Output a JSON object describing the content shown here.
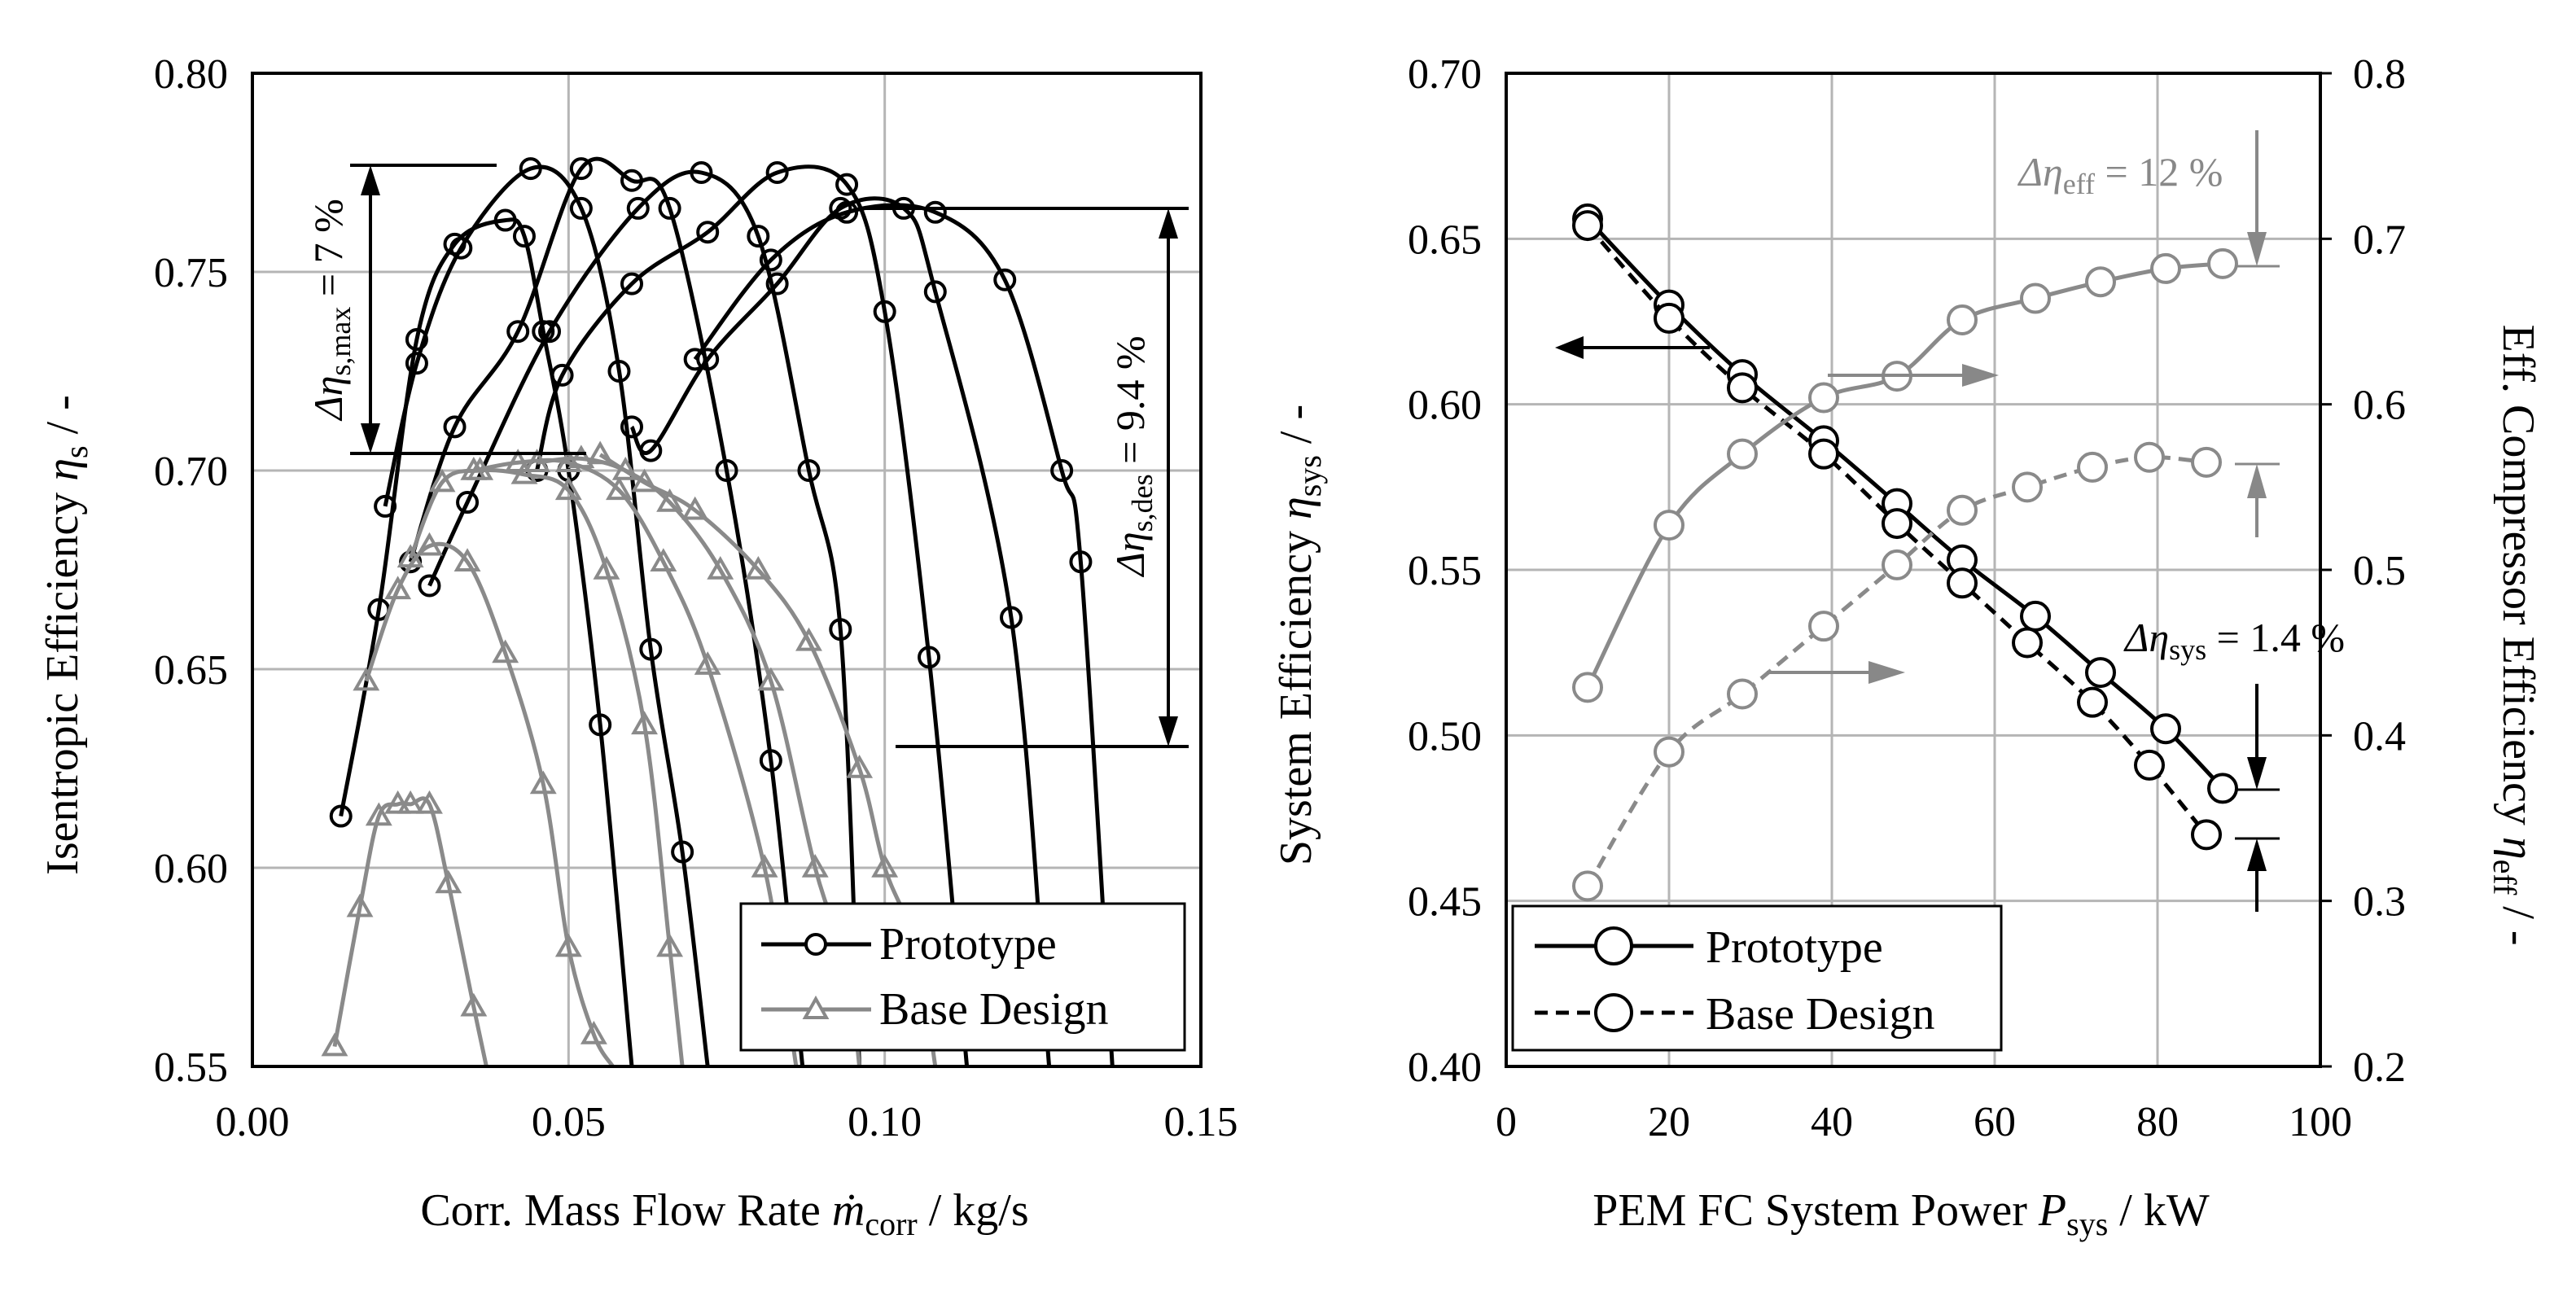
{
  "chart_data": [
    {
      "type": "line",
      "title": "",
      "xlabel": "Corr. Mass Flow Rate ṁcorr / kg/s",
      "ylabel": "Isentropic Efficiency ηs / -",
      "xlim": [
        0.0,
        0.15
      ],
      "ylim": [
        0.55,
        0.8
      ],
      "xticks": [
        "0.00",
        "0.05",
        "0.10",
        "0.15"
      ],
      "yticks": [
        "0.55",
        "0.60",
        "0.65",
        "0.70",
        "0.75",
        "0.80"
      ],
      "grid": true,
      "legend": {
        "placement": "bottom-right",
        "entries": [
          "Prototype",
          "Base Design"
        ]
      },
      "annotations": {
        "delta_max": "Δηs,max = 7 %",
        "delta_des": "Δηs,des = 9.4 %"
      },
      "series": [
        {
          "name": "Prototype",
          "group": "speed-1",
          "x": [
            0.014,
            0.02,
            0.026,
            0.032,
            0.04,
            0.043,
            0.046,
            0.05,
            0.055,
            0.06
          ],
          "y": [
            0.613,
            0.665,
            0.733,
            0.757,
            0.763,
            0.759,
            0.735,
            0.7,
            0.636,
            0.55
          ]
        },
        {
          "name": "Prototype",
          "group": "speed-2",
          "x": [
            0.021,
            0.026,
            0.033,
            0.044,
            0.052,
            0.058,
            0.063,
            0.068,
            0.072
          ],
          "y": [
            0.691,
            0.727,
            0.756,
            0.776,
            0.766,
            0.725,
            0.655,
            0.604,
            0.55
          ]
        },
        {
          "name": "Prototype",
          "group": "speed-3",
          "x": [
            0.025,
            0.032,
            0.042,
            0.052,
            0.06,
            0.066,
            0.075,
            0.082,
            0.087
          ],
          "y": [
            0.677,
            0.711,
            0.735,
            0.776,
            0.773,
            0.766,
            0.7,
            0.627,
            0.55
          ]
        },
        {
          "name": "Prototype",
          "group": "speed-4",
          "x": [
            0.028,
            0.034,
            0.047,
            0.061,
            0.071,
            0.08,
            0.088,
            0.093,
            0.096
          ],
          "y": [
            0.671,
            0.692,
            0.735,
            0.766,
            0.775,
            0.759,
            0.7,
            0.66,
            0.55
          ]
        },
        {
          "name": "Prototype",
          "group": "speed-5",
          "x": [
            0.045,
            0.049,
            0.06,
            0.072,
            0.083,
            0.094,
            0.1,
            0.107,
            0.113
          ],
          "y": [
            0.7,
            0.724,
            0.747,
            0.76,
            0.775,
            0.772,
            0.74,
            0.653,
            0.55
          ]
        },
        {
          "name": "Prototype",
          "group": "speed-6",
          "x": [
            0.06,
            0.063,
            0.072,
            0.083,
            0.093,
            0.103,
            0.108,
            0.12,
            0.126
          ],
          "y": [
            0.711,
            0.705,
            0.728,
            0.747,
            0.766,
            0.766,
            0.745,
            0.663,
            0.55
          ]
        },
        {
          "name": "Prototype",
          "group": "speed-7",
          "x": [
            0.07,
            0.082,
            0.094,
            0.108,
            0.119,
            0.128,
            0.131,
            0.136
          ],
          "y": [
            0.728,
            0.753,
            0.765,
            0.765,
            0.748,
            0.7,
            0.677,
            0.55
          ]
        },
        {
          "name": "Base Design",
          "group": "speed-1",
          "x": [
            0.013,
            0.017,
            0.02,
            0.023,
            0.025,
            0.028,
            0.031,
            0.035,
            0.037
          ],
          "y": [
            0.555,
            0.59,
            0.613,
            0.616,
            0.616,
            0.616,
            0.596,
            0.565,
            0.55
          ]
        },
        {
          "name": "Base Design",
          "group": "speed-2",
          "x": [
            0.018,
            0.023,
            0.028,
            0.034,
            0.04,
            0.046,
            0.05,
            0.054,
            0.057
          ],
          "y": [
            0.647,
            0.67,
            0.681,
            0.677,
            0.654,
            0.621,
            0.58,
            0.558,
            0.55
          ]
        },
        {
          "name": "Base Design",
          "group": "speed-3",
          "x": [
            0.025,
            0.03,
            0.036,
            0.043,
            0.05,
            0.056,
            0.062,
            0.066,
            0.068
          ],
          "y": [
            0.678,
            0.697,
            0.7,
            0.699,
            0.695,
            0.675,
            0.636,
            0.58,
            0.55
          ]
        },
        {
          "name": "Base Design",
          "group": "speed-4",
          "x": [
            0.035,
            0.042,
            0.05,
            0.058,
            0.065,
            0.072,
            0.081,
            0.086
          ],
          "y": [
            0.7,
            0.702,
            0.702,
            0.695,
            0.677,
            0.651,
            0.6,
            0.55
          ]
        },
        {
          "name": "Base Design",
          "group": "speed-5",
          "x": [
            0.045,
            0.052,
            0.059,
            0.066,
            0.074,
            0.082,
            0.089,
            0.094,
            0.096
          ],
          "y": [
            0.702,
            0.703,
            0.7,
            0.692,
            0.675,
            0.647,
            0.6,
            0.575,
            0.55
          ]
        },
        {
          "name": "Base Design",
          "group": "speed-6",
          "x": [
            0.055,
            0.062,
            0.07,
            0.08,
            0.088,
            0.096,
            0.1,
            0.105,
            0.108
          ],
          "y": [
            0.704,
            0.697,
            0.69,
            0.675,
            0.657,
            0.625,
            0.6,
            0.58,
            0.55
          ]
        }
      ]
    },
    {
      "type": "line",
      "title": "",
      "xlabel": "PEM FC System Power Psys / kW",
      "ylabel": "System Efficiency ηsys / -",
      "ylabel_right": "Eff. Compressor Efficiency ηeff / -",
      "xlim": [
        0,
        100
      ],
      "ylim": [
        0.4,
        0.7
      ],
      "ylim_right": [
        0.2,
        0.8
      ],
      "xticks": [
        "0",
        "20",
        "40",
        "60",
        "80",
        "100"
      ],
      "yticks": [
        "0.40",
        "0.45",
        "0.50",
        "0.55",
        "0.60",
        "0.65",
        "0.70"
      ],
      "yticks_right": [
        "0.2",
        "0.3",
        "0.4",
        "0.5",
        "0.6",
        "0.7",
        "0.8"
      ],
      "grid": true,
      "legend": {
        "placement": "bottom-left",
        "entries": [
          "Prototype",
          "Base Design"
        ]
      },
      "annotations": {
        "delta_eff": "Δηeff = 12 %",
        "delta_sys": "Δηsys = 1.4 %"
      },
      "series": [
        {
          "name": "Prototype",
          "axis": "left",
          "x": [
            10,
            20,
            29,
            39,
            48,
            56,
            65,
            73,
            81,
            88
          ],
          "y": [
            0.656,
            0.63,
            0.609,
            0.589,
            0.57,
            0.553,
            0.536,
            0.519,
            0.502,
            0.484
          ]
        },
        {
          "name": "Base Design",
          "axis": "left",
          "x": [
            10,
            20,
            29,
            39,
            48,
            56,
            64,
            72,
            79,
            86
          ],
          "y": [
            0.654,
            0.626,
            0.605,
            0.585,
            0.564,
            0.546,
            0.528,
            0.51,
            0.491,
            0.47
          ]
        },
        {
          "name": "Prototype",
          "axis": "right",
          "x": [
            10,
            20,
            29,
            39,
            48,
            56,
            65,
            73,
            81,
            88
          ],
          "y": [
            0.429,
            0.527,
            0.57,
            0.604,
            0.617,
            0.651,
            0.664,
            0.674,
            0.682,
            0.685
          ]
        },
        {
          "name": "Base Design",
          "axis": "right",
          "x": [
            10,
            20,
            29,
            39,
            48,
            56,
            64,
            72,
            79,
            86
          ],
          "y": [
            0.309,
            0.39,
            0.425,
            0.466,
            0.503,
            0.536,
            0.55,
            0.562,
            0.568,
            0.565
          ]
        }
      ]
    }
  ]
}
